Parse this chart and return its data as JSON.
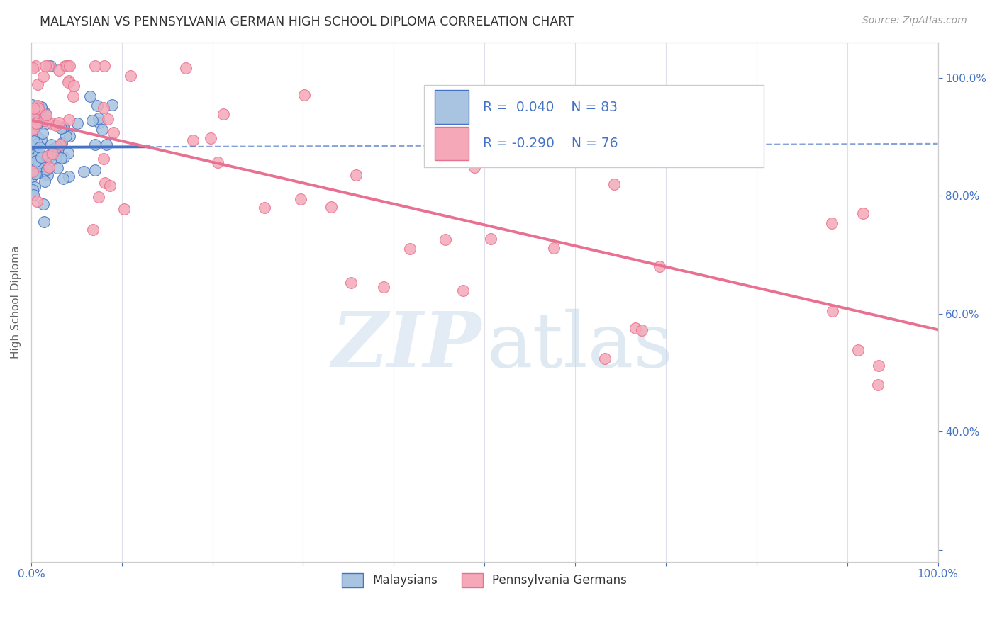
{
  "title": "MALAYSIAN VS PENNSYLVANIA GERMAN HIGH SCHOOL DIPLOMA CORRELATION CHART",
  "source": "Source: ZipAtlas.com",
  "ylabel": "High School Diploma",
  "r_malaysian": 0.04,
  "n_malaysian": 83,
  "r_penn_german": -0.29,
  "n_penn_german": 76,
  "legend_labels": [
    "Malaysians",
    "Pennsylvania Germans"
  ],
  "color_malaysian": "#a8c4e0",
  "color_penn_german": "#f4a8b8",
  "line_color_malaysian": "#4472c4",
  "line_color_penn_german": "#e87090",
  "axis_label_color": "#4472c4",
  "title_color": "#333333",
  "mal_slope": 0.006,
  "mal_intercept": 0.882,
  "pg_slope": -0.355,
  "pg_intercept": 0.928,
  "xlim": [
    0.0,
    1.0
  ],
  "ylim": [
    0.18,
    1.06
  ]
}
